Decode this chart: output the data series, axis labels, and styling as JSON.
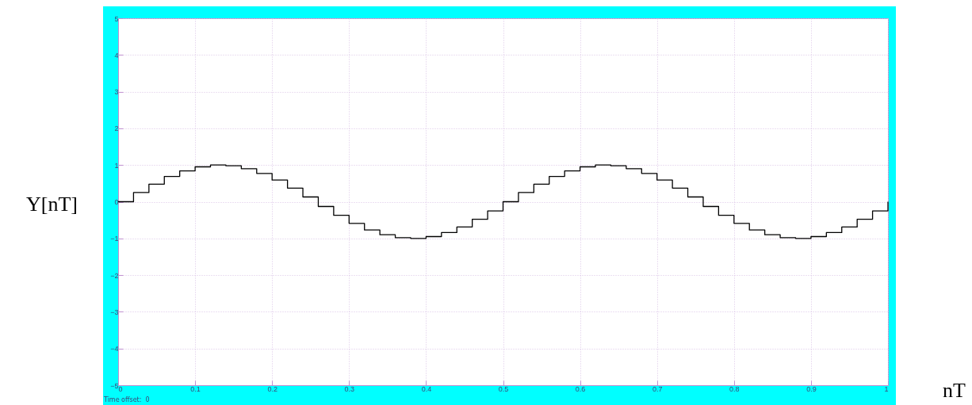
{
  "chart_data": {
    "type": "step",
    "xlabel": "nT",
    "ylabel": "Y[nT]",
    "annotations": [
      "Time offset:  0"
    ],
    "x": [
      0,
      0.02,
      0.04,
      0.06,
      0.08,
      0.1,
      0.12,
      0.14,
      0.16,
      0.18,
      0.2,
      0.22,
      0.24,
      0.26,
      0.28,
      0.3,
      0.32,
      0.34,
      0.36,
      0.38,
      0.4,
      0.42,
      0.44,
      0.46,
      0.48,
      0.5,
      0.52,
      0.54,
      0.56,
      0.58,
      0.6,
      0.62,
      0.64,
      0.66,
      0.68,
      0.7,
      0.72,
      0.74,
      0.76,
      0.78,
      0.8,
      0.82,
      0.84,
      0.86,
      0.88,
      0.9,
      0.92,
      0.94,
      0.96,
      0.98,
      1
    ],
    "series": [
      {
        "color": "#000000",
        "values": [
          0,
          0.25,
          0.48,
          0.69,
          0.84,
          0.95,
          1.0,
          0.98,
          0.9,
          0.77,
          0.59,
          0.37,
          0.13,
          -0.13,
          -0.37,
          -0.59,
          -0.77,
          -0.9,
          -0.98,
          -1.0,
          -0.95,
          -0.84,
          -0.69,
          -0.48,
          -0.25,
          0,
          0.25,
          0.48,
          0.69,
          0.84,
          0.95,
          1.0,
          0.98,
          0.9,
          0.77,
          0.59,
          0.37,
          0.13,
          -0.13,
          -0.37,
          -0.59,
          -0.77,
          -0.9,
          -0.98,
          -1.0,
          -0.95,
          -0.84,
          -0.69,
          -0.48,
          -0.25,
          0
        ]
      }
    ],
    "xlim": [
      0,
      1
    ],
    "xticks": [
      0,
      0.1,
      0.2,
      0.3,
      0.4,
      0.5,
      0.6,
      0.7,
      0.8,
      0.9,
      1
    ],
    "ylim": [
      -5,
      5
    ],
    "yticks": [
      -5,
      -4,
      -3,
      -2,
      -1,
      0,
      1,
      2,
      3,
      4,
      5
    ],
    "grid": true,
    "marker": "none",
    "line_style": "solid"
  }
}
